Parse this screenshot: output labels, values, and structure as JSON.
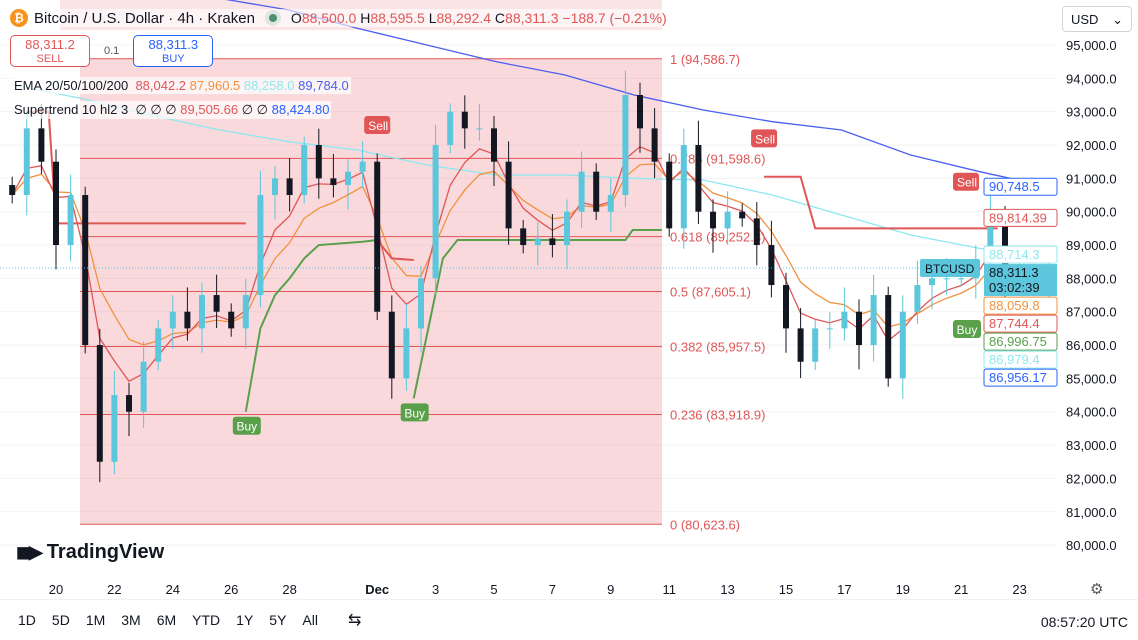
{
  "header": {
    "symbol_icon": "bitcoin-icon",
    "title": "Bitcoin / U.S. Dollar · 4h · Kraken",
    "market_status": "open",
    "open_label": "O",
    "open": "88,500.0",
    "high_label": "H",
    "high": "88,595.5",
    "low_label": "L",
    "low": "88,292.4",
    "close_label": "C",
    "close": "88,311.3",
    "change": "−188.7 (−0.21%)"
  },
  "trade": {
    "sell_price": "88,311.2",
    "sell_label": "SELL",
    "spread": "0.1",
    "buy_price": "88,311.3",
    "buy_label": "BUY"
  },
  "indicators": {
    "ema_label": "EMA 20/50/100/200",
    "ema_values": [
      "88,042.2",
      "87,960.5",
      "88,258.0",
      "89,784.0"
    ],
    "st_label": "Supertrend 10 hl2 3",
    "st_na": "∅ ∅ ∅",
    "st_sell": "89,505.66",
    "st_na2": "∅ ∅",
    "st_buy": "88,424.80"
  },
  "currency": "USD",
  "logo": "TradingView",
  "colors": {
    "up": "#5bc6dc",
    "down": "#131722",
    "ema20": "#e05656",
    "ema50": "#f2913d",
    "ema100": "#8de8ef",
    "ema200": "#4a5ff0",
    "st_up": "#5aa04b",
    "st_down": "#e05656",
    "fib": "#e05656"
  },
  "chart_data": {
    "type": "candlestick",
    "interval": "12h samples (approx.)",
    "start_day": "Nov 18.5",
    "closes": [
      90500,
      92500,
      91500,
      89000,
      90500,
      86000,
      82500,
      84500,
      84000,
      85500,
      86500,
      87000,
      86500,
      87500,
      87000,
      86500,
      87500,
      90500,
      91000,
      90500,
      92000,
      91000,
      90800,
      91200,
      91500,
      87000,
      85000,
      86500,
      88000,
      92000,
      93000,
      92500,
      92500,
      91500,
      89500,
      89000,
      89200,
      89000,
      90000,
      91200,
      90000,
      90500,
      93500,
      92500,
      91500,
      89500,
      92000,
      90000,
      89500,
      90000,
      89800,
      89000,
      87800,
      86500,
      85500,
      86500,
      86500,
      87000,
      86000,
      87500,
      85000,
      87000,
      87800,
      88000,
      88000,
      88000,
      88500,
      89800,
      88000,
      88000,
      87800,
      88311
    ],
    "ema100": [
      93800,
      93400,
      92900,
      92450,
      92100,
      91850,
      91400,
      91100,
      91100,
      91000,
      90950,
      90500,
      89900,
      89300,
      88900,
      88700
    ],
    "ema200": [
      97500,
      97100,
      96700,
      96400,
      96050,
      95500,
      95000,
      94500,
      94100,
      93500,
      93050,
      92700,
      92450,
      91700,
      91200,
      90750
    ],
    "supertrend": {
      "segments": [
        {
          "dir": "down",
          "points": [
            [
              1,
              93000
            ],
            [
              2.5,
              93000
            ],
            [
              3,
              89650
            ],
            [
              16,
              89650
            ]
          ]
        },
        {
          "dir": "up",
          "points": [
            [
              16,
              84000
            ],
            [
              17,
              86500
            ],
            [
              18,
              87500
            ],
            [
              19,
              88000
            ],
            [
              20,
              88600
            ],
            [
              21,
              89000
            ],
            [
              24,
              89100
            ],
            [
              25,
              89150
            ]
          ]
        },
        {
          "dir": "down",
          "points": [
            [
              25,
              89150
            ],
            [
              26,
              88600
            ],
            [
              27.5,
              88550
            ]
          ]
        },
        {
          "dir": "up",
          "points": [
            [
              27.5,
              84400
            ],
            [
              28.5,
              86500
            ],
            [
              29.5,
              88600
            ],
            [
              30.5,
              89150
            ],
            [
              42,
              89150
            ],
            [
              42.5,
              89450
            ],
            [
              44.5,
              89450
            ]
          ]
        },
        {
          "dir": "down",
          "points": [
            [
              51.5,
              91050
            ],
            [
              54,
              91050
            ],
            [
              55,
              89500
            ],
            [
              67.5,
              89500
            ]
          ]
        },
        {
          "dir": "up",
          "points": [
            [
              67.5,
              86900
            ],
            [
              68,
              87100
            ],
            [
              71,
              87100
            ]
          ]
        },
        {
          "dir": "down",
          "points": [
            [
              71,
              89814
            ]
          ]
        }
      ],
      "signals": [
        {
          "label": "Buy",
          "i": 16,
          "price": 84000
        },
        {
          "label": "Sell",
          "i": 25,
          "price": 92000
        },
        {
          "label": "Buy",
          "i": 27.5,
          "price": 84400
        },
        {
          "label": "Sell",
          "i": 51.5,
          "price": 91600
        },
        {
          "label": "Buy",
          "i": 67.5,
          "price": 86900
        },
        {
          "label": "Sell",
          "i": 71,
          "price": 90300
        }
      ]
    },
    "fib": [
      {
        "label": "1 (94,586.7)",
        "price": 94586.7
      },
      {
        "label": "0.786 (91,598.6)",
        "price": 91598.6
      },
      {
        "label": "0.618 (89,252.8)",
        "price": 89252.8
      },
      {
        "label": "0.5 (87,605.1)",
        "price": 87605.1
      },
      {
        "label": "0.382 (85,957.5)",
        "price": 85957.5
      },
      {
        "label": "0.236 (83,918.9)",
        "price": 83918.9
      },
      {
        "label": "0 (80,623.6)",
        "price": 80623.6
      }
    ],
    "y_ticks": [
      "80,000.0",
      "81,000.0",
      "82,000.0",
      "83,000.0",
      "84,000.0",
      "85,000.0",
      "86,000.0",
      "87,000.0",
      "88,000.0",
      "89,000.0",
      "90,000.0",
      "91,000.0",
      "92,000.0",
      "93,000.0",
      "94,000.0",
      "95,000.0"
    ],
    "ylim": [
      80000,
      95000
    ],
    "x_ticks": [
      {
        "label": "20",
        "day": 20
      },
      {
        "label": "22",
        "day": 22
      },
      {
        "label": "24",
        "day": 24
      },
      {
        "label": "26",
        "day": 26
      },
      {
        "label": "28",
        "day": 28
      },
      {
        "label": "Dec",
        "day": 31
      },
      {
        "label": "3",
        "day": 33
      },
      {
        "label": "5",
        "day": 35
      },
      {
        "label": "7",
        "day": 37
      },
      {
        "label": "9",
        "day": 39
      },
      {
        "label": "11",
        "day": 41
      },
      {
        "label": "13",
        "day": 43
      },
      {
        "label": "15",
        "day": 45
      },
      {
        "label": "17",
        "day": 47
      },
      {
        "label": "19",
        "day": 49
      },
      {
        "label": "21",
        "day": 51
      },
      {
        "label": "23",
        "day": 53
      }
    ],
    "price_tags": [
      {
        "text": "90,748.5",
        "price": 90748.5,
        "color": "#2962ff",
        "fill": false
      },
      {
        "text": "89,814.39",
        "price": 89814.39,
        "color": "#e05656",
        "fill": false
      },
      {
        "text": "88,714.3",
        "price": 88714.3,
        "color": "#8de8ef",
        "fill": false
      },
      {
        "text": "88,059.8",
        "price": 88059.8,
        "color": "#f2913d",
        "fill": false
      },
      {
        "text": "87,744.4",
        "price": 87744.4,
        "color": "#e05656",
        "fill": false
      },
      {
        "text": "86,996.75",
        "price": 86996.75,
        "color": "#5aa04b",
        "fill": false
      },
      {
        "text": "86,979.4",
        "price": 86979.4,
        "color": "#8de8ef",
        "fill": false
      },
      {
        "text": "86,956.17",
        "price": 86956.17,
        "color": "#2962ff",
        "fill": false
      }
    ],
    "last": {
      "symbol": "BTCUSD",
      "price": "88,311.3",
      "countdown": "03:02:39"
    }
  },
  "bottom": {
    "ranges": [
      "1D",
      "5D",
      "1M",
      "3M",
      "6M",
      "YTD",
      "1Y",
      "5Y",
      "All"
    ],
    "time": "08:57:20 UTC"
  }
}
